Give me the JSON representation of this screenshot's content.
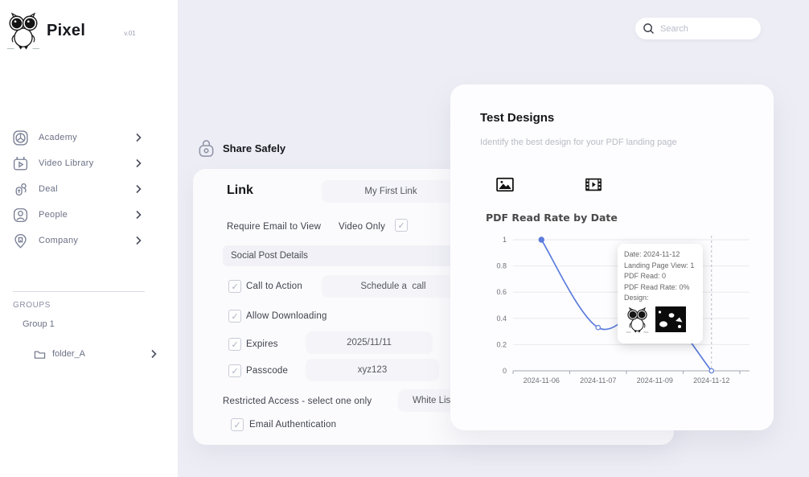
{
  "brand": {
    "name": "Pixel",
    "version": "v.01"
  },
  "search": {
    "placeholder": "Search"
  },
  "sidebar": {
    "items": [
      {
        "label": "Academy",
        "icon": "academy-icon"
      },
      {
        "label": "Video Library",
        "icon": "video-library-icon"
      },
      {
        "label": "Deal",
        "icon": "deal-icon"
      },
      {
        "label": "People",
        "icon": "people-icon"
      },
      {
        "label": "Company",
        "icon": "company-icon"
      }
    ],
    "groups_label": "GROUPS",
    "group_name": "Group 1",
    "folder_name": "folder_A"
  },
  "share": {
    "title": "Share Safely",
    "link_heading": "Link",
    "link_name": "My First Link",
    "require_email_label": "Require Email to View",
    "video_only_label": "Video Only",
    "social_post_details": "Social Post Details",
    "call_to_action_label": "Call to Action",
    "call_to_action_value": "Schedule a  call",
    "allow_downloading_label": "Allow Downloading",
    "expires_label": "Expires",
    "expires_value": "2025/11/11",
    "passcode_label": "Passcode",
    "passcode_value": "xyz123",
    "restricted_label": "Restricted Access - select one  only",
    "restricted_value": "White List",
    "email_auth_label": "Email Authentication"
  },
  "panel": {
    "title": "Test Designs",
    "subtitle": "Identify the best design for your PDF landing page"
  },
  "chart_data": {
    "type": "line",
    "title": "PDF Read Rate by Date",
    "categories": [
      "2024-11-06",
      "2024-11-07",
      "2024-11-09",
      "2024-11-12"
    ],
    "values": [
      1,
      0.33,
      0.5,
      0
    ],
    "ylim": [
      0,
      1
    ],
    "yticks": [
      0,
      0.2,
      0.4,
      0.6,
      0.8,
      1
    ],
    "xlabel": "",
    "ylabel": "",
    "grid": true,
    "smooth": true,
    "line_color": "#5b7cdb",
    "hover_index": 3
  },
  "tooltip": {
    "lines": [
      "Date: 2024-11-12",
      "Landing Page View: 1",
      "PDF Read: 0",
      "PDF Read Rate: 0%",
      "Design:"
    ]
  },
  "colors": {
    "accent": "#5b7cdb",
    "background": "#edeef5",
    "sidebar": "#ffffff"
  }
}
